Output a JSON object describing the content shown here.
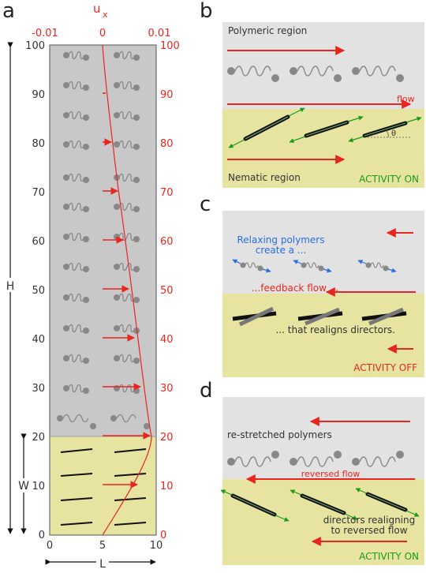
{
  "panels": {
    "a": {
      "label": "a",
      "top_axis": {
        "title": "u",
        "subscript": "x",
        "ticks": [
          "-0.01",
          "0",
          "0.01"
        ]
      },
      "left_ticks": [
        "100",
        "90",
        "80",
        "70",
        "60",
        "50",
        "40",
        "30",
        "20",
        "10",
        "0"
      ],
      "right_ticks": [
        "100",
        "90",
        "80",
        "70",
        "60",
        "50",
        "40",
        "30",
        "20",
        "10",
        "0"
      ],
      "bottom_ticks": [
        "0",
        "5",
        "10"
      ],
      "height_label": "H",
      "width_label": "W",
      "length_label": "L"
    },
    "b": {
      "label": "b",
      "polymeric": "Polymeric region",
      "flow": "flow",
      "nematic": "Nematic region",
      "activity": "ACTIVITY ON",
      "theta": "θ"
    },
    "c": {
      "label": "c",
      "relax_line1": "Relaxing polymers",
      "relax_line2": "create a ...",
      "feedback": "...feedback flow ...",
      "realign": "... that realigns directors.",
      "activity": "ACTIVITY OFF"
    },
    "d": {
      "label": "d",
      "restretched": "re-stretched polymers",
      "reversed": "reversed flow",
      "directors_line1": "directors realigning",
      "directors_line2": "to reversed flow",
      "activity": "ACTIVITY ON"
    }
  },
  "colors": {
    "gray_region": "#c8c8c8",
    "light_gray_region": "#e2e2e2",
    "nematic_region": "#e6e4a0",
    "red": "#e8261f",
    "green": "#1a9a1a",
    "blue": "#2a6de0"
  }
}
